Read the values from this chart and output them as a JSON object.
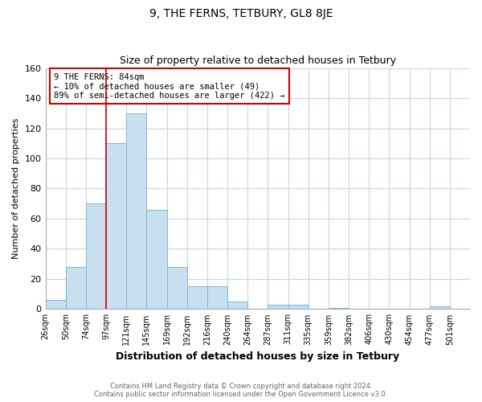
{
  "title": "9, THE FERNS, TETBURY, GL8 8JE",
  "subtitle": "Size of property relative to detached houses in Tetbury",
  "xlabel": "Distribution of detached houses by size in Tetbury",
  "ylabel": "Number of detached properties",
  "bin_labels": [
    "26sqm",
    "50sqm",
    "74sqm",
    "97sqm",
    "121sqm",
    "145sqm",
    "169sqm",
    "192sqm",
    "216sqm",
    "240sqm",
    "264sqm",
    "287sqm",
    "311sqm",
    "335sqm",
    "359sqm",
    "382sqm",
    "406sqm",
    "430sqm",
    "454sqm",
    "477sqm",
    "501sqm"
  ],
  "bar_heights": [
    6,
    28,
    70,
    110,
    130,
    66,
    28,
    15,
    15,
    5,
    0,
    3,
    3,
    0,
    1,
    0,
    0,
    0,
    0,
    2,
    0
  ],
  "bar_color": "#c8dff0",
  "bar_edge_color": "#7bb8d8",
  "vline_x": 3,
  "vline_color": "#cc0000",
  "annotation_text": "9 THE FERNS: 84sqm\n← 10% of detached houses are smaller (49)\n89% of semi-detached houses are larger (422) →",
  "annotation_box_color": "#ffffff",
  "annotation_box_edge": "#cc0000",
  "ylim": [
    0,
    160
  ],
  "yticks": [
    0,
    20,
    40,
    60,
    80,
    100,
    120,
    140,
    160
  ],
  "footer_line1": "Contains HM Land Registry data © Crown copyright and database right 2024.",
  "footer_line2": "Contains public sector information licensed under the Open Government Licence v3.0.",
  "bg_color": "#ffffff",
  "plot_bg_color": "#ffffff",
  "grid_color": "#c8d4e8"
}
